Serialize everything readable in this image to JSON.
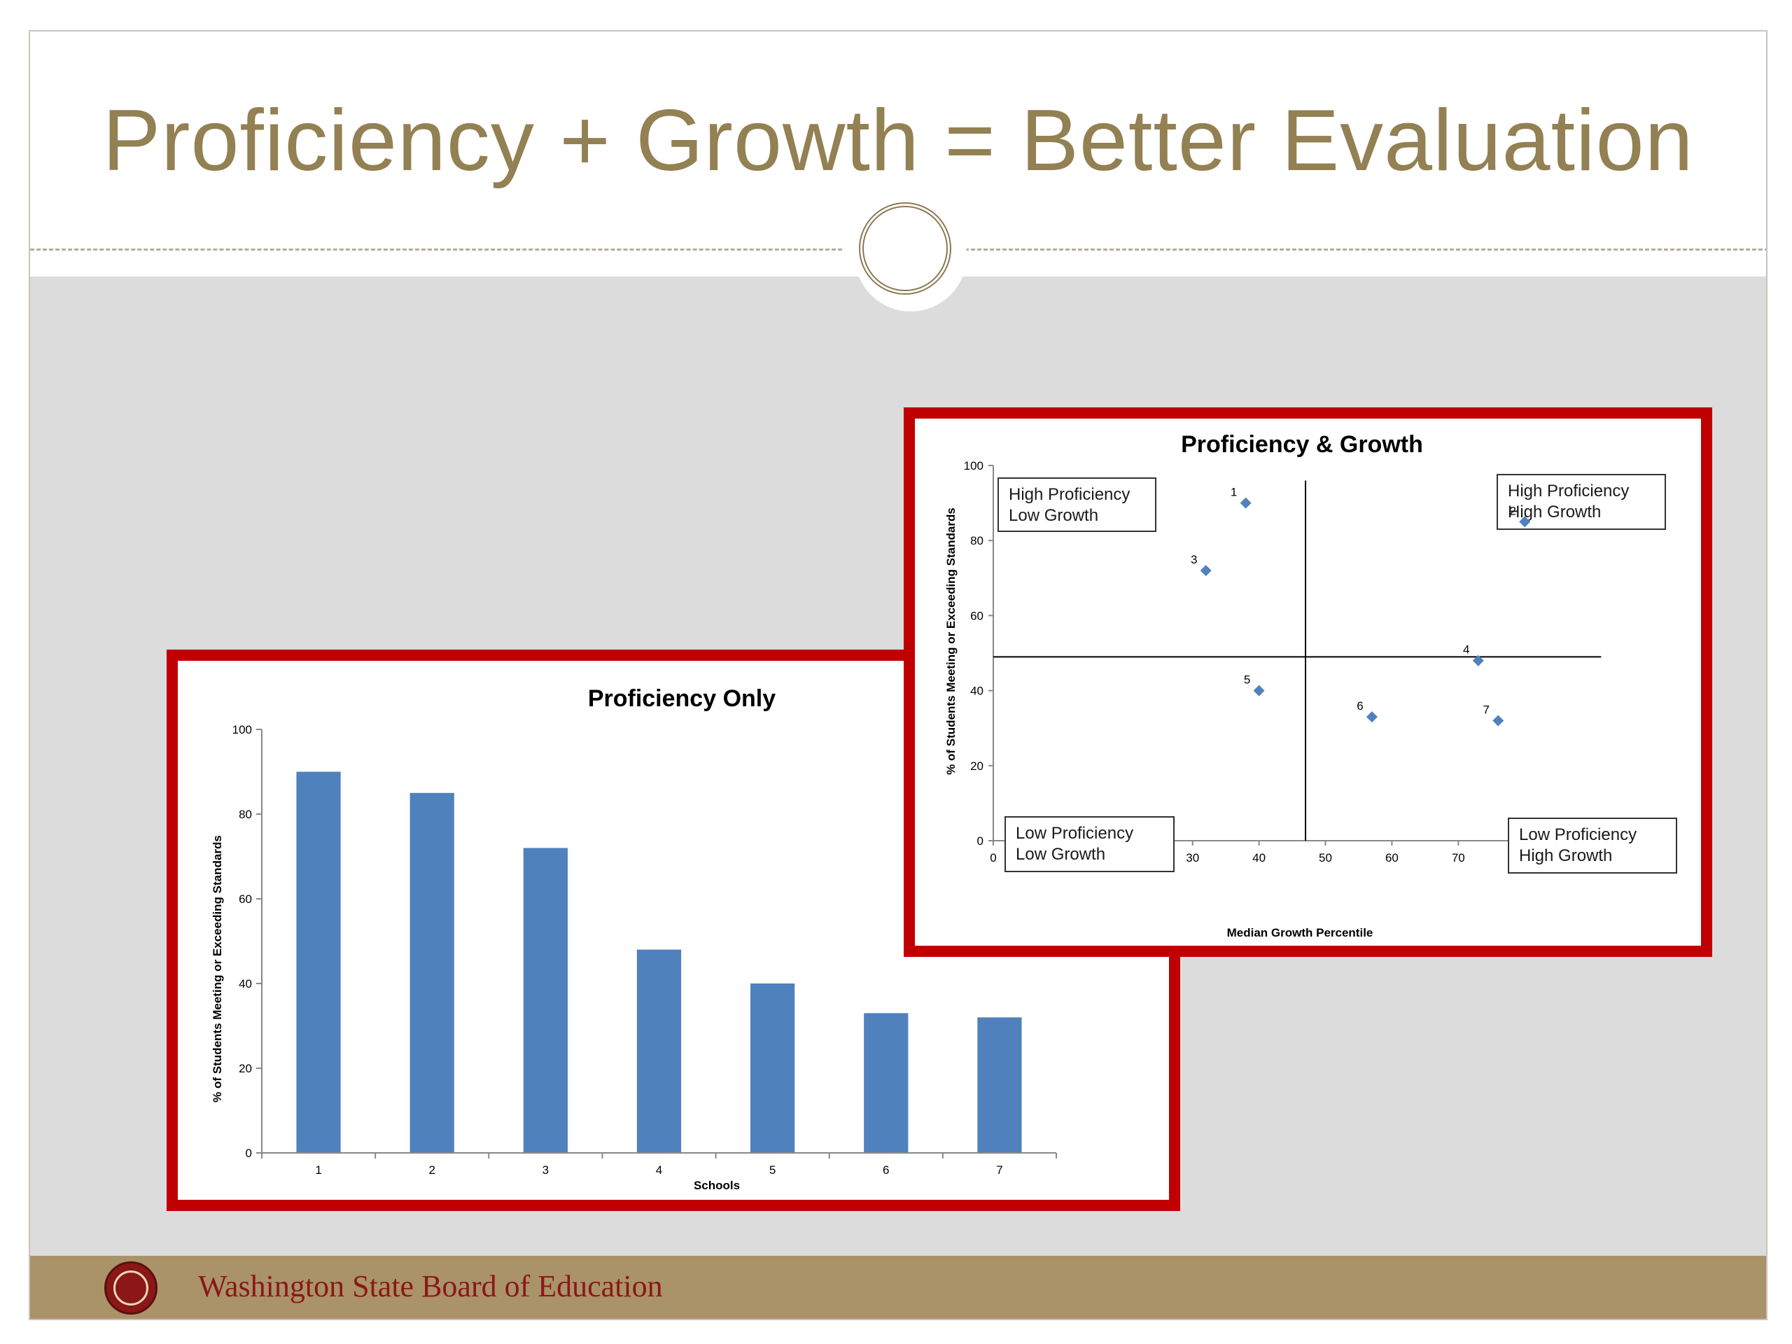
{
  "slide": {
    "title": "Proficiency + Growth = Better Evaluation",
    "footer_text": "Washington State Board of Education",
    "colors": {
      "title": "#938053",
      "footer_band": "#aa9369",
      "footer_text": "#8b1717",
      "panel_border": "#c00000",
      "background": "#dcdcdc",
      "bar": "#4f81bd",
      "point": "#4f81bd"
    }
  },
  "chart_data": [
    {
      "type": "bar",
      "title": "Proficiency Only",
      "xlabel": "Schools",
      "ylabel": "% of Students Meeting or Exceeding Standards",
      "categories": [
        "1",
        "2",
        "3",
        "4",
        "5",
        "6",
        "7"
      ],
      "values": [
        90,
        85,
        72,
        48,
        40,
        33,
        32
      ],
      "ylim": [
        0,
        100
      ],
      "yticks": [
        "0",
        "20",
        "40",
        "60",
        "80",
        "100"
      ],
      "grid": false,
      "legend": "none"
    },
    {
      "type": "scatter",
      "title": "Proficiency & Growth",
      "xlabel": "Median Growth Percentile",
      "ylabel": "% of Students Meeting or Exceeding Standards",
      "xlim": [
        0,
        100
      ],
      "ylim": [
        0,
        100
      ],
      "xticks": [
        "0",
        "10",
        "20",
        "30",
        "40",
        "50",
        "60",
        "70",
        "80",
        "90",
        "100"
      ],
      "yticks": [
        "0",
        "20",
        "40",
        "60",
        "80",
        "100"
      ],
      "points": [
        {
          "label": "1",
          "x": 38,
          "y": 90
        },
        {
          "label": "2",
          "x": 80,
          "y": 85
        },
        {
          "label": "3",
          "x": 32,
          "y": 72
        },
        {
          "label": "4",
          "x": 73,
          "y": 48
        },
        {
          "label": "5",
          "x": 40,
          "y": 40
        },
        {
          "label": "6",
          "x": 57,
          "y": 33
        },
        {
          "label": "7",
          "x": 76,
          "y": 32
        }
      ],
      "reference_lines": {
        "x": 47,
        "y": 49
      },
      "quadrant_labels": {
        "top_left": [
          "High Proficiency",
          "Low Growth"
        ],
        "top_right": [
          "High Proficiency",
          "High Growth"
        ],
        "bottom_left": [
          "Low Proficiency",
          "Low Growth"
        ],
        "bottom_right": [
          "Low Proficiency",
          "High Growth"
        ]
      },
      "grid": false,
      "legend": "none"
    }
  ]
}
